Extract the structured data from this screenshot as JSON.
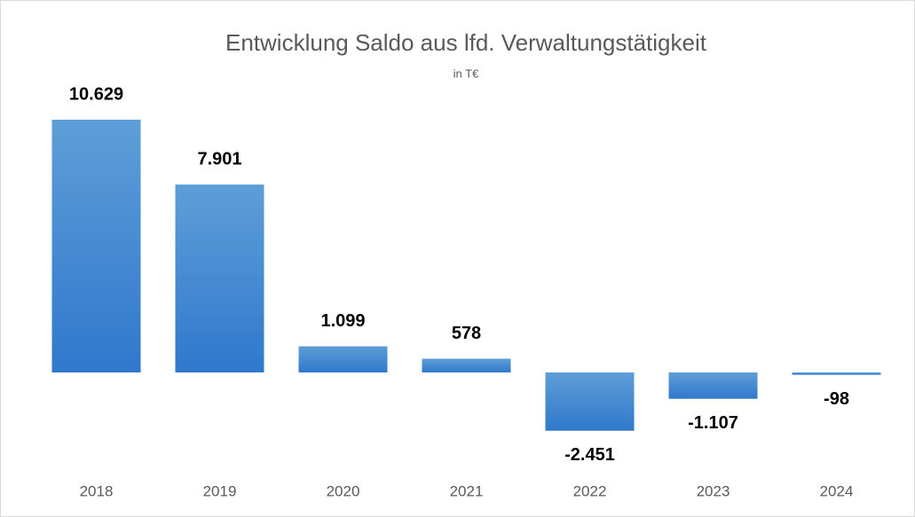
{
  "chart_data": {
    "type": "bar",
    "title": "Entwicklung Saldo aus lfd. Verwaltungstätigkeit",
    "subtitle": "in T€",
    "categories": [
      "2018",
      "2019",
      "2020",
      "2021",
      "2022",
      "2023",
      "2024"
    ],
    "values": [
      10629,
      7901,
      1099,
      578,
      -2451,
      -1107,
      -98
    ],
    "value_labels": [
      "10.629",
      "7.901",
      "1.099",
      "578",
      "-2.451",
      "-1.107",
      "-98"
    ],
    "color": "#4a8ad4"
  }
}
